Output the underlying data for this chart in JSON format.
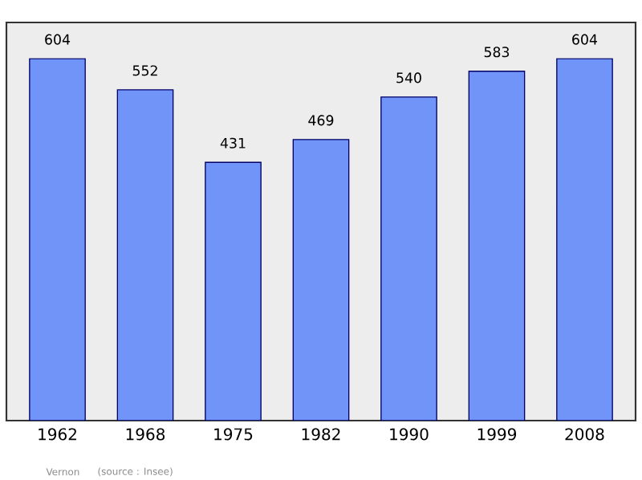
{
  "chart_data": {
    "type": "bar",
    "categories": [
      "1962",
      "1968",
      "1975",
      "1982",
      "1990",
      "1999",
      "2008"
    ],
    "values": [
      604,
      552,
      431,
      469,
      540,
      583,
      604
    ],
    "color": "#7094f8",
    "data_labels": true,
    "annotations": [
      "Vernon",
      "(source : Insee)"
    ]
  }
}
